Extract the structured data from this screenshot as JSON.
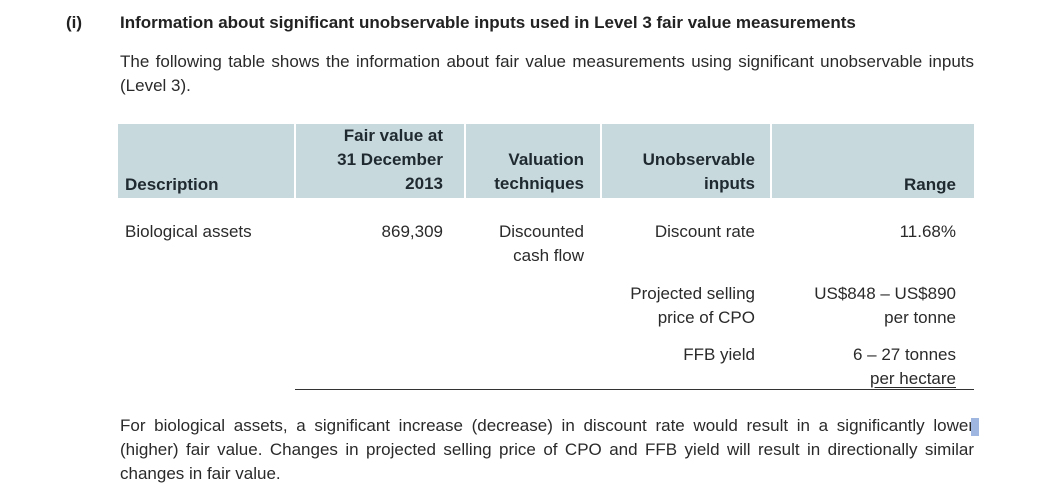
{
  "section": {
    "number": "(i)",
    "title": "Information about significant unobservable inputs used in Level 3 fair value measurements"
  },
  "intro": "The following table shows the information about fair value measurements using significant unobservable inputs (Level 3).",
  "table": {
    "headers": {
      "description": "Description",
      "fair_value": [
        "Fair value at",
        "31 December",
        "2013"
      ],
      "valuation": [
        "Valuation",
        "techniques"
      ],
      "unobservable": [
        "Unobservable",
        "inputs"
      ],
      "range": "Range"
    },
    "row": {
      "description": "Biological assets",
      "fair_value": "869,309",
      "valuation": [
        "Discounted",
        "cash flow"
      ],
      "inputs": [
        {
          "label": [
            "Discount rate"
          ],
          "range": [
            "11.68%"
          ]
        },
        {
          "label": [
            "Projected selling",
            "price of CPO"
          ],
          "range": [
            "US$848 – US$890",
            "per tonne"
          ]
        },
        {
          "label": [
            "FFB yield"
          ],
          "range": [
            "6 – 27 tonnes",
            "per hectare"
          ]
        }
      ]
    }
  },
  "note": "For biological assets, a significant increase (decrease) in discount rate would result in a significantly lower (higher) fair value. Changes in projected selling price of CPO and FFB yield will result in directionally similar changes in fair value."
}
